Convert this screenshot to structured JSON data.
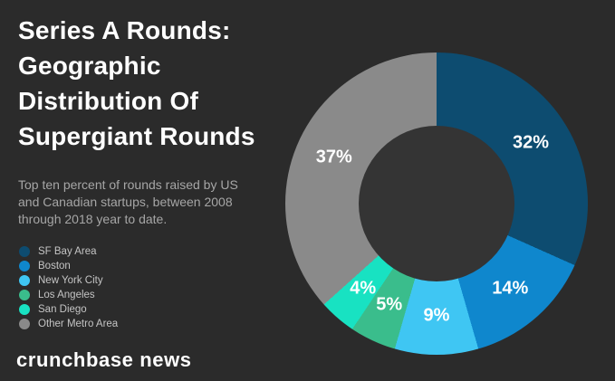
{
  "page": {
    "background": "#2b2b2b"
  },
  "title": {
    "lines": [
      "Series A Rounds:",
      "Geographic",
      "Distribution Of",
      "Supergiant Rounds"
    ]
  },
  "subtitle": {
    "lines": [
      "Top ten percent of rounds raised by US",
      "and Canadian startups, between 2008",
      "through 2018 year to date."
    ]
  },
  "footer": {
    "brand": "crunchbase news"
  },
  "chart_data": {
    "type": "pie",
    "donut": true,
    "title": "Series A Rounds: Geographic Distribution Of Supergiant Rounds",
    "subtitle": "Top ten percent of rounds raised by US and Canadian startups, between 2008 through 2018 year to date.",
    "categories": [
      "SF Bay Area",
      "Boston",
      "New York City",
      "Los Angeles",
      "San Diego",
      "Other Metro Area"
    ],
    "values": [
      32,
      14,
      9,
      5,
      4,
      37
    ],
    "labels": [
      "32%",
      "14%",
      "9%",
      "5%",
      "4%",
      "37%"
    ],
    "colors": [
      "#0d4c70",
      "#0f87cd",
      "#3fc6f3",
      "#3abd8c",
      "#18e2c2",
      "#8a8a8a"
    ],
    "start_angle_deg": 0,
    "direction": "clockwise",
    "hole_color": "#343434",
    "background_color": "#2b2b2b",
    "label_color": "#ffffff",
    "legend_position": "left"
  }
}
